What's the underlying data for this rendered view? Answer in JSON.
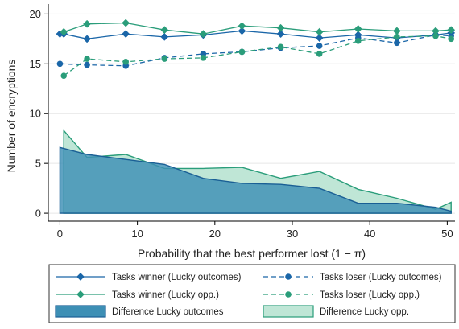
{
  "chart_data": {
    "type": "line",
    "xlabel": "Probability that the best performer lost (1 − π)",
    "ylabel": "Number of encryptions",
    "xlim": [
      -1.5,
      51
    ],
    "ylim": [
      -0.8,
      21
    ],
    "xticks": [
      0,
      10,
      20,
      30,
      40,
      50
    ],
    "yticks": [
      0,
      5,
      10,
      15,
      20
    ],
    "grid": "horizontal",
    "legend_position": "bottom",
    "x": [
      0,
      0.5,
      3.5,
      8.5,
      13.5,
      18.5,
      23.5,
      28.5,
      33.5,
      38.5,
      43.5,
      48.5,
      50.5
    ],
    "series": [
      {
        "name": "Tasks winner (Lucky outcomes)",
        "style": "solid",
        "marker": "diamond",
        "color": "#1a66a8",
        "values": [
          18.0,
          18.0,
          17.5,
          18.0,
          17.7,
          17.9,
          18.3,
          18.0,
          17.6,
          17.9,
          17.6,
          17.9,
          18.1
        ]
      },
      {
        "name": "Tasks loser (Lucky outcomes)",
        "style": "dashed",
        "marker": "circle",
        "color": "#1a66a8",
        "values": [
          15.0,
          null,
          14.9,
          14.8,
          15.6,
          16.0,
          16.2,
          16.6,
          16.8,
          17.6,
          17.1,
          17.9,
          17.8
        ]
      },
      {
        "name": "Tasks winner (Lucky opp.)",
        "style": "solid",
        "marker": "diamond",
        "color": "#2a9d7a",
        "values": [
          null,
          18.2,
          19.0,
          19.1,
          18.4,
          18.0,
          18.8,
          18.6,
          18.2,
          18.5,
          18.3,
          18.3,
          18.4
        ]
      },
      {
        "name": "Tasks loser (Lucky opp.)",
        "style": "dashed",
        "marker": "circle",
        "color": "#2a9d7a",
        "values": [
          null,
          13.8,
          15.5,
          15.2,
          15.5,
          15.6,
          16.2,
          16.7,
          16.0,
          17.3,
          17.7,
          17.8,
          17.5
        ]
      }
    ],
    "areas": [
      {
        "name": "Difference Lucky opp.",
        "fill": "#bfe6d6",
        "stroke": "#2a9d7a",
        "fill_opacity": 1,
        "x": [
          0.5,
          0.5,
          3.5,
          8.5,
          13.5,
          18.5,
          23.5,
          28.5,
          33.5,
          38.5,
          43.5,
          48.5,
          50.5,
          50.5
        ],
        "values": [
          0,
          8.3,
          5.6,
          5.9,
          4.5,
          4.5,
          4.6,
          3.5,
          4.2,
          2.4,
          1.5,
          0.4,
          1.1,
          0
        ]
      },
      {
        "name": "Difference Lucky outcomes",
        "fill": "#3d8fb5",
        "stroke": "#1a5f95",
        "fill_opacity": 0.82,
        "x": [
          0,
          0,
          3.5,
          8.5,
          13.5,
          18.5,
          23.5,
          28.5,
          33.5,
          38.5,
          43.5,
          48.5,
          50.5,
          50.5
        ],
        "values": [
          0,
          6.6,
          5.9,
          5.4,
          4.9,
          3.5,
          3.0,
          2.9,
          2.5,
          1.0,
          1.0,
          0.6,
          0.2,
          0
        ]
      }
    ],
    "legend": [
      {
        "label": "Tasks winner (Lucky outcomes)",
        "kind": "line",
        "style": "solid",
        "marker": "diamond",
        "color": "#1a66a8"
      },
      {
        "label": "Tasks loser (Lucky outcomes)",
        "kind": "line",
        "style": "dashed",
        "marker": "circle",
        "color": "#1a66a8"
      },
      {
        "label": "Tasks winner (Lucky opp.)",
        "kind": "line",
        "style": "solid",
        "marker": "diamond",
        "color": "#2a9d7a"
      },
      {
        "label": "Tasks loser (Lucky opp.)",
        "kind": "line",
        "style": "dashed",
        "marker": "circle",
        "color": "#2a9d7a"
      },
      {
        "label": "Difference Lucky outcomes",
        "kind": "area",
        "fill": "#3d8fb5",
        "stroke": "#1a5f95"
      },
      {
        "label": "Difference Lucky opp.",
        "kind": "area",
        "fill": "#bfe6d6",
        "stroke": "#2a9d7a"
      }
    ]
  }
}
